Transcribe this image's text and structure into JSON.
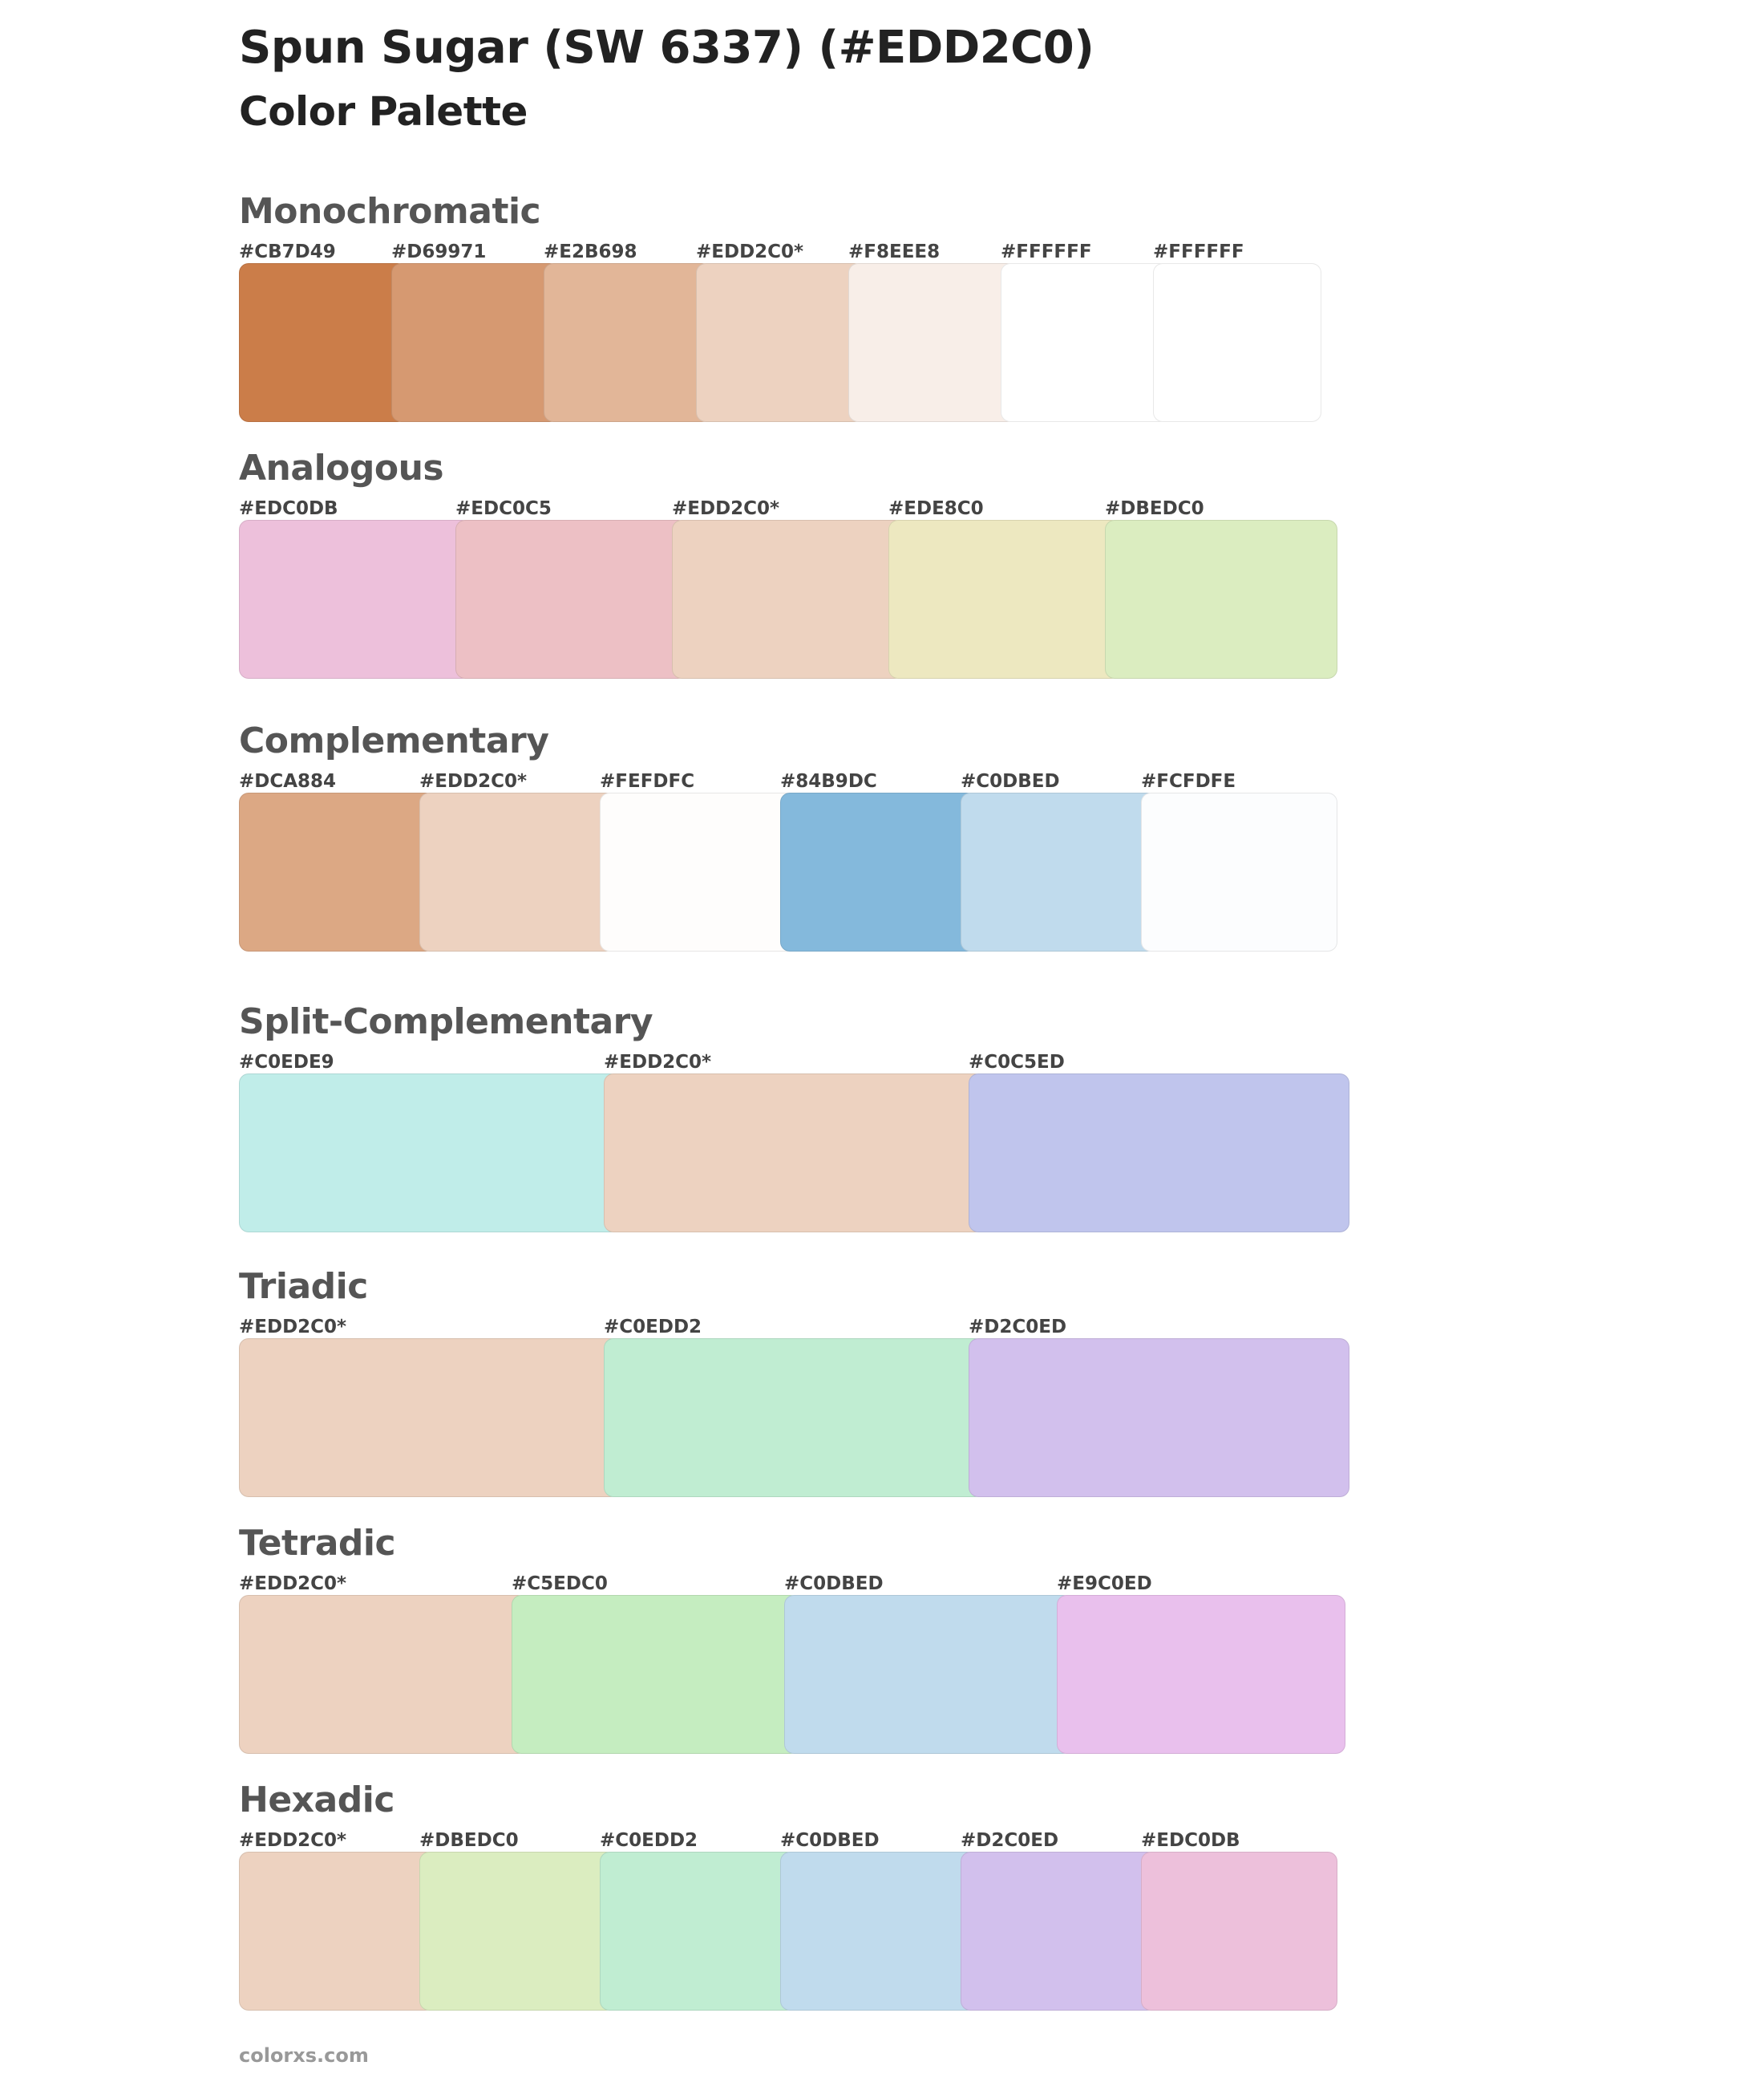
{
  "header": {
    "title": "Spun Sugar (SW 6337) (#EDD2C0)",
    "subtitle": "Color Palette"
  },
  "sections": [
    {
      "name": "monochromatic",
      "title": "Monochromatic",
      "swatches": [
        {
          "label": "#CB7D49",
          "color": "#CB7D49"
        },
        {
          "label": "#D69971",
          "color": "#D69971"
        },
        {
          "label": "#E2B698",
          "color": "#E2B698"
        },
        {
          "label": "#EDD2C0*",
          "color": "#EDD2C0"
        },
        {
          "label": "#F8EEE8",
          "color": "#F8EEE8"
        },
        {
          "label": "#FFFFFF",
          "color": "#FFFFFF"
        },
        {
          "label": "#FFFFFF",
          "color": "#FFFFFF"
        }
      ]
    },
    {
      "name": "analogous",
      "title": "Analogous",
      "swatches": [
        {
          "label": "#EDC0DB",
          "color": "#EDC0DB"
        },
        {
          "label": "#EDC0C5",
          "color": "#EDC0C5"
        },
        {
          "label": "#EDD2C0*",
          "color": "#EDD2C0"
        },
        {
          "label": "#EDE8C0",
          "color": "#EDE8C0"
        },
        {
          "label": "#DBEDC0",
          "color": "#DBEDC0"
        }
      ]
    },
    {
      "name": "complementary",
      "title": "Complementary",
      "swatches": [
        {
          "label": "#DCA884",
          "color": "#DCA884"
        },
        {
          "label": "#EDD2C0*",
          "color": "#EDD2C0"
        },
        {
          "label": "#FEFDFC",
          "color": "#FEFDFC"
        },
        {
          "label": "#84B9DC",
          "color": "#84B9DC"
        },
        {
          "label": "#C0DBED",
          "color": "#C0DBED"
        },
        {
          "label": "#FCFDFE",
          "color": "#FCFDFE"
        }
      ]
    },
    {
      "name": "split-complementary",
      "title": "Split-Complementary",
      "swatches": [
        {
          "label": "#C0EDE9",
          "color": "#C0EDE9"
        },
        {
          "label": "#EDD2C0*",
          "color": "#EDD2C0"
        },
        {
          "label": "#C0C5ED",
          "color": "#C0C5ED"
        }
      ]
    },
    {
      "name": "triadic",
      "title": "Triadic",
      "swatches": [
        {
          "label": "#EDD2C0*",
          "color": "#EDD2C0"
        },
        {
          "label": "#C0EDD2",
          "color": "#C0EDD2"
        },
        {
          "label": "#D2C0ED",
          "color": "#D2C0ED"
        }
      ]
    },
    {
      "name": "tetradic",
      "title": "Tetradic",
      "swatches": [
        {
          "label": "#EDD2C0*",
          "color": "#EDD2C0"
        },
        {
          "label": "#C5EDC0",
          "color": "#C5EDC0"
        },
        {
          "label": "#C0DBED",
          "color": "#C0DBED"
        },
        {
          "label": "#E9C0ED",
          "color": "#E9C0ED"
        }
      ]
    },
    {
      "name": "hexadic",
      "title": "Hexadic",
      "swatches": [
        {
          "label": "#EDD2C0*",
          "color": "#EDD2C0"
        },
        {
          "label": "#DBEDC0",
          "color": "#DBEDC0"
        },
        {
          "label": "#C0EDD2",
          "color": "#C0EDD2"
        },
        {
          "label": "#C0DBED",
          "color": "#C0DBED"
        },
        {
          "label": "#D2C0ED",
          "color": "#D2C0ED"
        },
        {
          "label": "#EDC0DB",
          "color": "#EDC0DB"
        }
      ]
    }
  ],
  "footer": {
    "site": "colorxs.com"
  }
}
